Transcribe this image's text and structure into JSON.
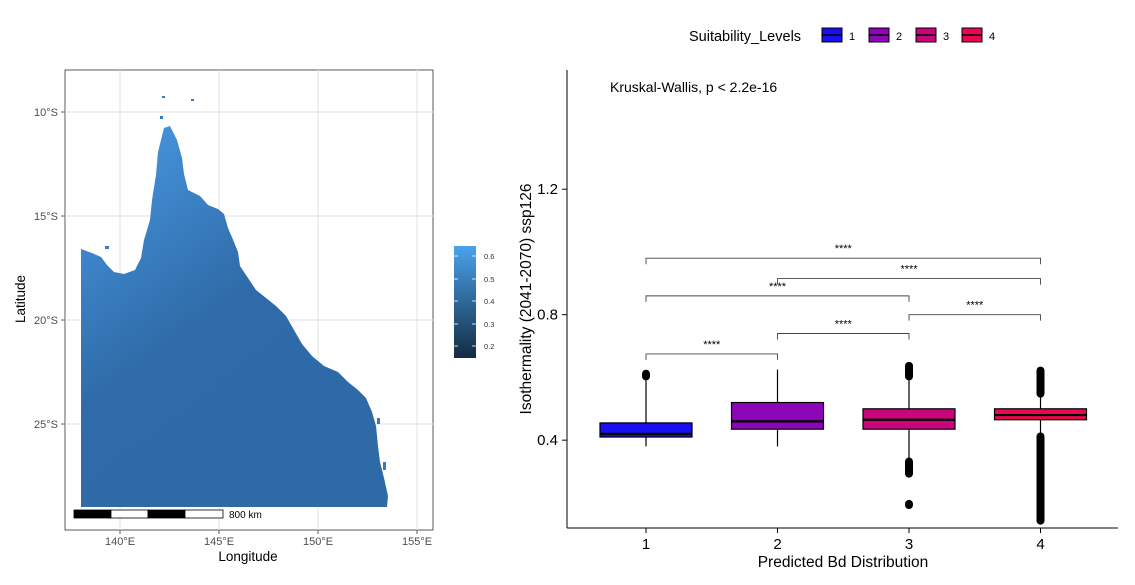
{
  "map_panel": {
    "xlabel": "Longitude",
    "ylabel": "Latitude",
    "x_ticks": [
      "140°E",
      "145°E",
      "150°E",
      "155°E"
    ],
    "y_ticks": [
      "10°S",
      "15°S",
      "20°S",
      "25°S"
    ],
    "colorbar_ticks": [
      "0.6",
      "0.5",
      "0.4",
      "0.3",
      "0.2"
    ],
    "colorbar_colors": [
      "#4aa3ec",
      "#132b43"
    ],
    "scalebar_label": "800 km",
    "land_color": "#3a7bbd"
  },
  "chart_data": {
    "type": "boxplot",
    "xlabel": "Predicted Bd Distribution",
    "ylabel": "Isothermality (2041-2070) ssp126",
    "categories": [
      "1",
      "2",
      "3",
      "4"
    ],
    "ylim": [
      0.12,
      1.58
    ],
    "y_ticks": [
      0.4,
      0.8,
      1.2
    ],
    "y_tick_labels": [
      "0.4",
      "0.8",
      "1.2"
    ],
    "legend": {
      "title": "Suitability_Levels",
      "position": "top",
      "entries": [
        "1",
        "2",
        "3",
        "4"
      ]
    },
    "colors": [
      "#1a0ff0",
      "#8c06b8",
      "#c8057a",
      "#e8084e"
    ],
    "test_label": "Kruskal-Wallis, p < 2.2e-16",
    "boxes": [
      {
        "name": "1",
        "whisker_low": 0.38,
        "q1": 0.41,
        "median": 0.42,
        "q3": 0.455,
        "whisker_high": 0.6
      },
      {
        "name": "2",
        "whisker_low": 0.38,
        "q1": 0.435,
        "median": 0.46,
        "q3": 0.52,
        "whisker_high": 0.625
      },
      {
        "name": "3",
        "whisker_low": 0.34,
        "q1": 0.435,
        "median": 0.465,
        "q3": 0.5,
        "whisker_high": 0.6
      },
      {
        "name": "4",
        "whisker_low": 0.42,
        "q1": 0.465,
        "median": 0.48,
        "q3": 0.5,
        "whisker_high": 0.545
      }
    ],
    "outliers": [
      {
        "group": "1",
        "from": 0.6,
        "to": 0.615
      },
      {
        "group": "3",
        "from": 0.6,
        "to": 0.64
      },
      {
        "group": "3",
        "from": 0.29,
        "to": 0.335
      },
      {
        "group": "3",
        "from": 0.19,
        "to": 0.2
      },
      {
        "group": "4",
        "from": 0.545,
        "to": 0.625
      },
      {
        "group": "4",
        "from": 0.14,
        "to": 0.415
      }
    ],
    "comparisons": [
      {
        "from": "1",
        "to": "2",
        "y": 0.675,
        "label": "****"
      },
      {
        "from": "2",
        "to": "3",
        "y": 0.74,
        "label": "****"
      },
      {
        "from": "3",
        "to": "4",
        "y": 0.8,
        "label": "****"
      },
      {
        "from": "1",
        "to": "3",
        "y": 0.86,
        "label": "****"
      },
      {
        "from": "2",
        "to": "4",
        "y": 0.915,
        "label": "****"
      },
      {
        "from": "1",
        "to": "4",
        "y": 0.98,
        "label": "****"
      }
    ]
  }
}
